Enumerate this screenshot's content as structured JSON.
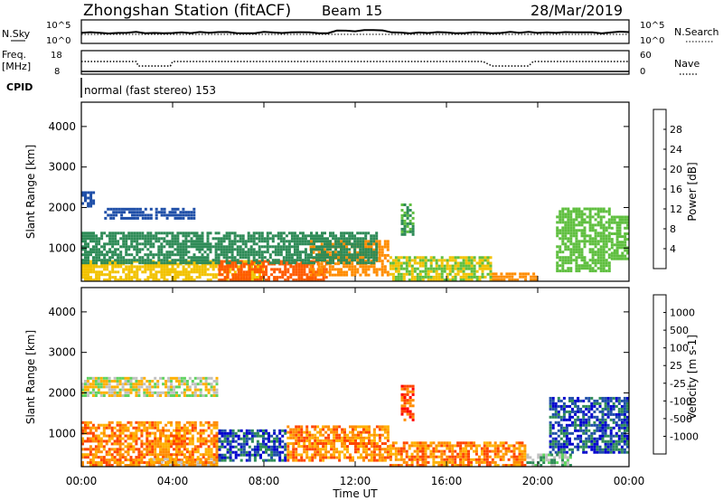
{
  "header": {
    "station": "Zhongshan Station (fitACF)",
    "beam": "Beam 15",
    "date": "28/Mar/2019"
  },
  "nsky_panel": {
    "left_label": "N.Sky",
    "left_ticks": [
      "10^5",
      "10^0"
    ],
    "right_ticks": [
      "10^5",
      "10^0"
    ],
    "right_label": "N.Search"
  },
  "freq_panel": {
    "left_label_line1": "Freq.",
    "left_label_line2": "[MHz]",
    "left_ticks": [
      "18",
      "8"
    ],
    "right_ticks": [
      "60",
      "0"
    ],
    "right_label": "Nave"
  },
  "cpid_panel": {
    "label": "CPID",
    "text": "normal (fast stereo) 153"
  },
  "colors": {
    "power": [
      "#0000ff",
      "#1f4fa8",
      "#2e8b57",
      "#5fbf3f",
      "#f2c200",
      "#ff8c00",
      "#ff5a00",
      "#ff0000"
    ],
    "velocity": [
      "#ff0000",
      "#ff4500",
      "#ff8c00",
      "#ffb000",
      "#c0c0c0",
      "#5fd35f",
      "#2e8b57",
      "#1f4fa8",
      "#0000cd"
    ]
  },
  "chart_data": [
    {
      "type": "heatmap",
      "name": "power",
      "ylabel": "Slant Range [km]",
      "yticks": [
        "1000",
        "2000",
        "3000",
        "4000"
      ],
      "ylim": [
        180,
        4600
      ],
      "xlim": [
        0,
        24
      ],
      "colorbar_label": "Power [dB]",
      "colorbar_ticks": [
        "4",
        "8",
        "12",
        "16",
        "20",
        "24",
        "28"
      ],
      "colorbar_range": [
        0,
        32
      ],
      "blobs": [
        {
          "t0": 0.0,
          "t1": 8.0,
          "r0": 180,
          "r1": 700,
          "v": 18
        },
        {
          "t0": 6.0,
          "t1": 10.8,
          "r0": 180,
          "r1": 700,
          "v": 26
        },
        {
          "t0": 10.0,
          "t1": 13.5,
          "r0": 300,
          "r1": 1200,
          "v": 22
        },
        {
          "t0": 13.5,
          "t1": 18.0,
          "r0": 180,
          "r1": 800,
          "v": 16
        },
        {
          "t0": 18.0,
          "t1": 20.0,
          "r0": 180,
          "r1": 400,
          "v": 22
        },
        {
          "t0": 0.0,
          "t1": 13.0,
          "r0": 600,
          "r1": 1400,
          "v": 10
        },
        {
          "t0": 0.0,
          "t1": 0.6,
          "r0": 2000,
          "r1": 2400,
          "v": 6
        },
        {
          "t0": 1.0,
          "t1": 5.0,
          "r0": 1700,
          "r1": 2000,
          "v": 6
        },
        {
          "t0": 14.0,
          "t1": 14.6,
          "r0": 1300,
          "r1": 2100,
          "v": 12
        },
        {
          "t0": 20.8,
          "t1": 23.2,
          "r0": 400,
          "r1": 2000,
          "v": 14
        },
        {
          "t0": 23.2,
          "t1": 24.0,
          "r0": 700,
          "r1": 1800,
          "v": 14
        }
      ]
    },
    {
      "type": "heatmap",
      "name": "velocity",
      "ylabel": "Slant Range [km]",
      "yticks": [
        "1000",
        "2000",
        "3000",
        "4000"
      ],
      "ylim": [
        180,
        4600
      ],
      "xlim": [
        0,
        24
      ],
      "xticks": [
        "00:00",
        "04:00",
        "08:00",
        "12:00",
        "16:00",
        "20:00",
        "00:00"
      ],
      "xlabel": "Time UT",
      "colorbar_label": "Velocity [m s-1]",
      "colorbar_ticks": [
        "1000",
        "500",
        "100",
        "25",
        "-25",
        "-100",
        "-500",
        "-1000"
      ],
      "blobs": [
        {
          "t0": 0.0,
          "t1": 6.0,
          "r0": 180,
          "r1": 1300,
          "v": 2
        },
        {
          "t0": 3.0,
          "t1": 6.0,
          "r0": 180,
          "r1": 400,
          "v": 3
        },
        {
          "t0": 6.0,
          "t1": 9.0,
          "r0": 300,
          "r1": 1100,
          "v": 7
        },
        {
          "t0": 9.0,
          "t1": 13.5,
          "r0": 300,
          "r1": 1200,
          "v": 2
        },
        {
          "t0": 13.5,
          "t1": 19.5,
          "r0": 180,
          "r1": 800,
          "v": 2
        },
        {
          "t0": 0.0,
          "t1": 6.0,
          "r0": 1900,
          "r1": 2400,
          "v": 4
        },
        {
          "t0": 14.0,
          "t1": 14.6,
          "r0": 1300,
          "r1": 2200,
          "v": 1
        },
        {
          "t0": 20.5,
          "t1": 24.0,
          "r0": 500,
          "r1": 1900,
          "v": 7
        },
        {
          "t0": 19.5,
          "t1": 21.5,
          "r0": 180,
          "r1": 500,
          "v": 5
        }
      ]
    }
  ]
}
